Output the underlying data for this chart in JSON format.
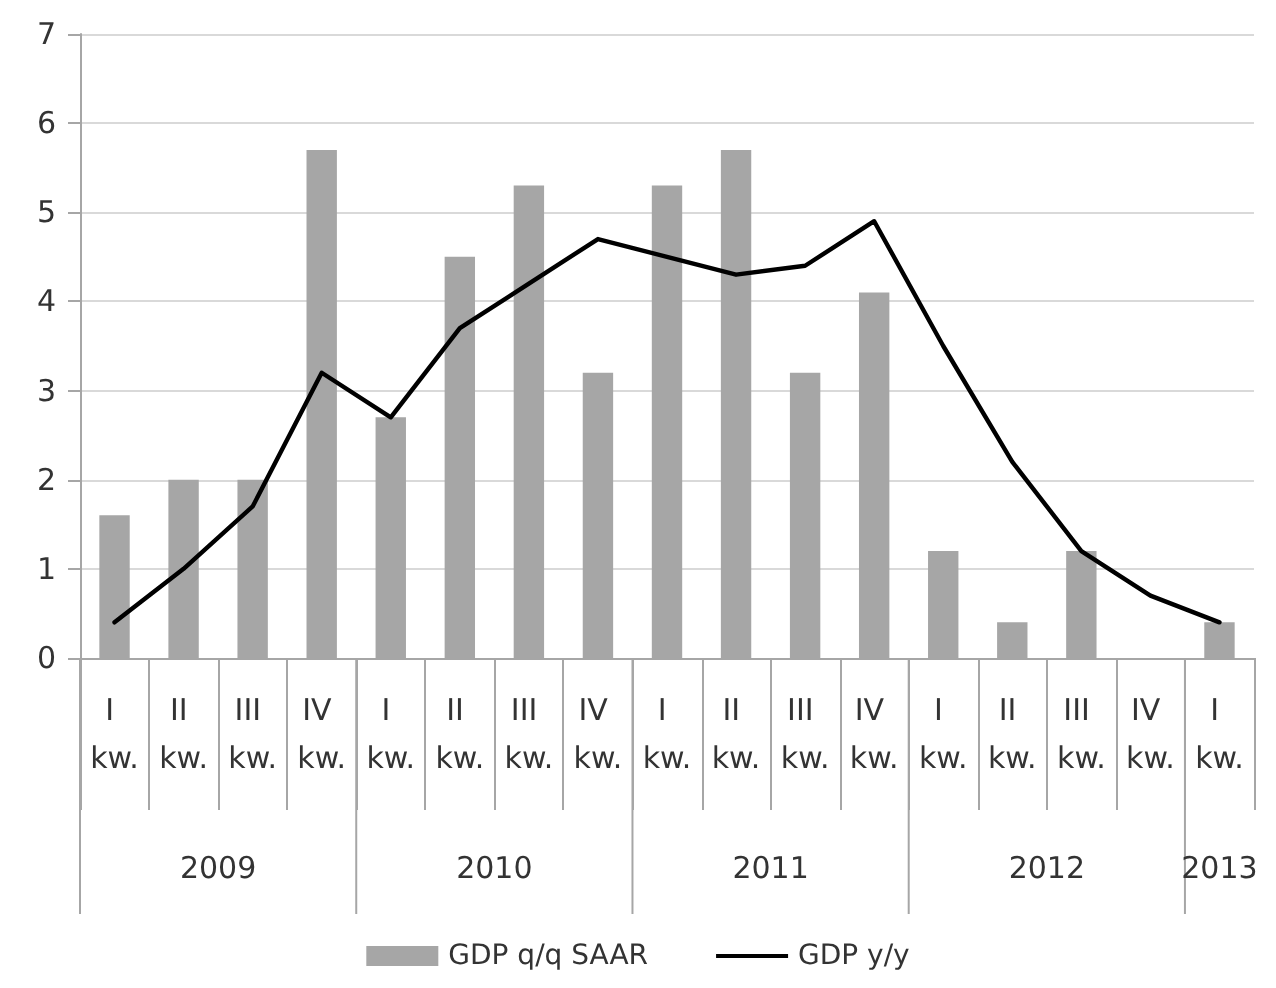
{
  "chart_data": {
    "type": "bar",
    "categories": [
      "I kw.",
      "II kw.",
      "III kw.",
      "IV kw.",
      "I kw.",
      "II kw.",
      "III kw.",
      "IV kw.",
      "I kw.",
      "II kw.",
      "III kw.",
      "IV kw.",
      "I kw.",
      "II kw.",
      "III kw.",
      "IV kw.",
      "I kw."
    ],
    "series": [
      {
        "name": "GDP q/q SAAR",
        "color": "#a6a6a6",
        "values": [
          1.6,
          2.0,
          2.0,
          5.7,
          2.7,
          4.5,
          5.3,
          3.2,
          5.3,
          5.7,
          3.2,
          4.1,
          1.2,
          0.4,
          1.2,
          null,
          0.4
        ]
      },
      {
        "name": "GDP y/y",
        "type": "line",
        "color": "#000000",
        "values": [
          0.4,
          1.0,
          1.7,
          3.2,
          2.7,
          3.7,
          4.2,
          4.7,
          4.5,
          4.3,
          4.4,
          4.9,
          3.5,
          2.2,
          1.2,
          0.7,
          0.4
        ]
      }
    ],
    "ylim": [
      0,
      7
    ],
    "yticks": [
      0,
      1,
      2,
      3,
      4,
      5,
      6,
      7
    ],
    "grid": "y",
    "legend": "bottom",
    "marker": "none",
    "line_style": "solid",
    "annotations": [
      "2009",
      "2010",
      "2011",
      "2012",
      "2013"
    ]
  }
}
